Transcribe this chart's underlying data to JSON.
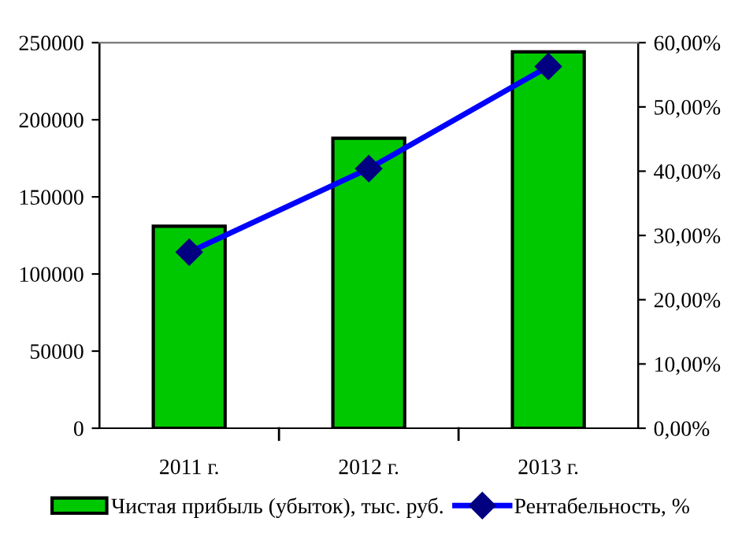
{
  "chart_data": {
    "type": "bar",
    "categories": [
      "2011 г.",
      "2012 г.",
      "2013 г."
    ],
    "series": [
      {
        "name": "Чистая прибыль (убыток), тыс. руб.",
        "color": "#00c800",
        "values": [
          131000,
          188000,
          244000
        ]
      },
      {
        "name": "Рентабельность, %",
        "type": "line",
        "axis": "y2",
        "color": "#0000ff",
        "values": [
          27.4,
          40.4,
          56.3
        ]
      }
    ],
    "ylim": [
      0,
      250000
    ],
    "yticks": [
      0,
      50000,
      100000,
      150000,
      200000,
      250000
    ],
    "y2lim": [
      0,
      60
    ],
    "y2ticks": [
      {
        "value": 0,
        "label": "0,00%"
      },
      {
        "value": 10,
        "label": "10,00%"
      },
      {
        "value": 20,
        "label": "20,00%"
      },
      {
        "value": 30,
        "label": "30,00%"
      },
      {
        "value": 40,
        "label": "40,00%"
      },
      {
        "value": 50,
        "label": "50,00%"
      },
      {
        "value": 60,
        "label": "60,00%"
      }
    ],
    "marker": "diamond",
    "line_style": "solid",
    "grid": false,
    "legend": "bottom"
  }
}
